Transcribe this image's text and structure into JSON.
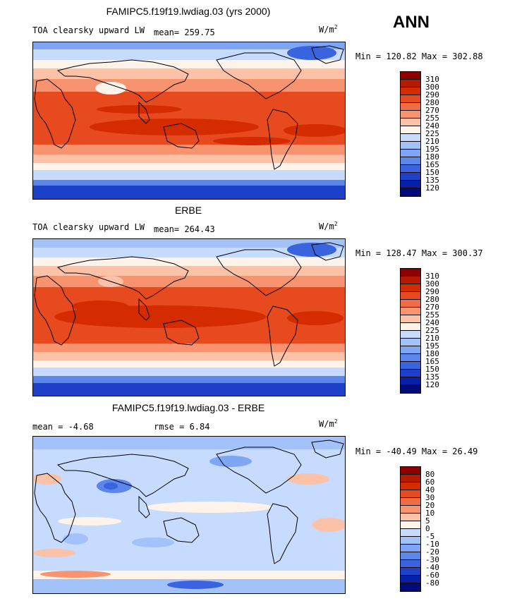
{
  "season": "ANN",
  "panels": [
    {
      "title": "FAMIPC5.f19f19.lwdiag.03 (yrs 2000)",
      "variable": "TOA clearsky upward LW",
      "stat1": "mean= 259.75",
      "stat2": "",
      "units": "W/m",
      "units_exp": "2",
      "minmax": "Min = 120.82 Max = 302.88",
      "levels": [
        "310",
        "300",
        "290",
        "280",
        "270",
        "255",
        "240",
        "225",
        "210",
        "195",
        "180",
        "165",
        "150",
        "135",
        "120"
      ],
      "colors": [
        "#8c0000",
        "#b31b00",
        "#d42c00",
        "#e84a1f",
        "#f26b45",
        "#f7946f",
        "#fbc2a8",
        "#fff3ea",
        "#c7dbff",
        "#a3c2fa",
        "#7ea6f5",
        "#5c86eb",
        "#3a64de",
        "#1e40c8",
        "#0a1fa8",
        "#000a78"
      ]
    },
    {
      "title": "ERBE",
      "variable": "TOA clearsky upward LW",
      "stat1": "mean= 264.43",
      "stat2": "",
      "units": "W/m",
      "units_exp": "2",
      "minmax": "Min = 128.47 Max = 300.37",
      "levels": [
        "310",
        "300",
        "290",
        "280",
        "270",
        "255",
        "240",
        "225",
        "210",
        "195",
        "180",
        "165",
        "150",
        "135",
        "120"
      ],
      "colors": [
        "#8c0000",
        "#b31b00",
        "#d42c00",
        "#e84a1f",
        "#f26b45",
        "#f7946f",
        "#fbc2a8",
        "#fff3ea",
        "#c7dbff",
        "#a3c2fa",
        "#7ea6f5",
        "#5c86eb",
        "#3a64de",
        "#1e40c8",
        "#0a1fa8",
        "#000a78"
      ]
    },
    {
      "title": "FAMIPC5.f19f19.lwdiag.03 - ERBE",
      "variable": "",
      "stat1": "mean =  -4.68",
      "stat2": "rmse =   6.84",
      "units": "W/m",
      "units_exp": "2",
      "minmax": "Min = -40.49 Max =  26.49",
      "levels": [
        "80",
        "60",
        "40",
        "30",
        "20",
        "10",
        "5",
        "0",
        "-5",
        "-10",
        "-20",
        "-30",
        "-40",
        "-60",
        "-80"
      ],
      "colors": [
        "#8c0000",
        "#b31b00",
        "#d42c00",
        "#e84a1f",
        "#f26b45",
        "#f7946f",
        "#fbc2a8",
        "#fff3ea",
        "#c7dbff",
        "#a3c2fa",
        "#7ea6f5",
        "#5c86eb",
        "#3a64de",
        "#1e40c8",
        "#0a1fa8",
        "#000a78"
      ]
    }
  ]
}
